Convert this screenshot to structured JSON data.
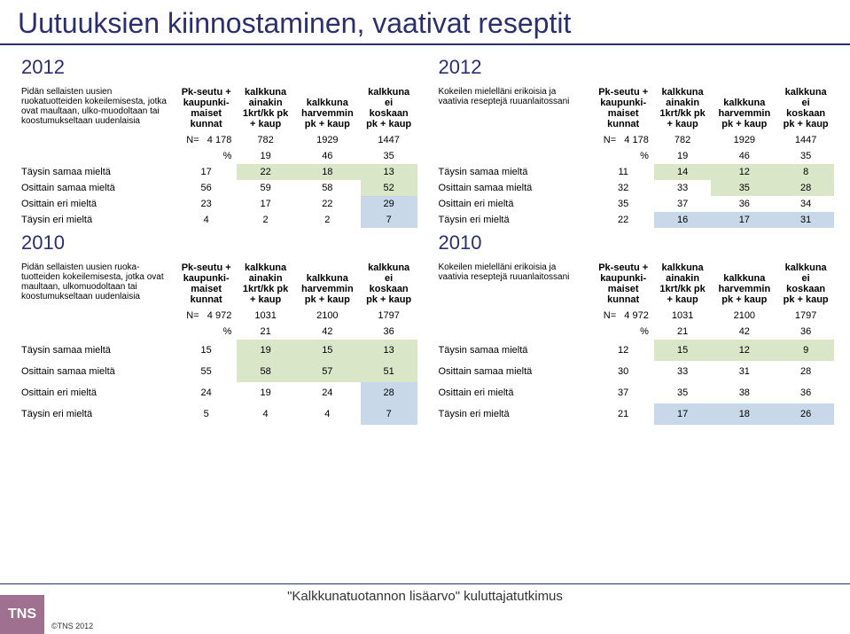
{
  "title": "Uutuuksien kiinnostaminen, vaativat reseptit",
  "years": {
    "y2012": "2012",
    "y2010": "2010"
  },
  "columns": {
    "c1": "Pk-seutu + kaupunki-maiset kunnat",
    "c2": "kalkkuna ainakin 1krt/kk pk + kaup",
    "c3": "kalkkuna harvemmin pk + kaup",
    "c4": "kalkkuna ei koskaan pk + kaup"
  },
  "row_labels": {
    "n": "N=",
    "pct": "%",
    "r1": "Täysin samaa mieltä",
    "r2": "Osittain samaa mieltä",
    "r3": "Osittain eri mieltä",
    "r4": "Täysin eri mieltä"
  },
  "tables": {
    "tl": {
      "desc": "Pidän sellaisten uusien ruokatuotteiden kokeilemisesta, jotka ovat maultaan, ulko-muodoltaan tai koostumukseltaan uudenlaisia",
      "n": [
        "4 178",
        "782",
        "1929",
        "1447"
      ],
      "pct": [
        "",
        "19",
        "46",
        "35"
      ],
      "rows": [
        [
          "17",
          "22",
          "18",
          "13"
        ],
        [
          "56",
          "59",
          "58",
          "52"
        ],
        [
          "23",
          "17",
          "22",
          "29"
        ],
        [
          "4",
          "2",
          "2",
          "7"
        ]
      ],
      "highlights": [
        {
          "r": 0,
          "cols": [
            1,
            2,
            3
          ],
          "bg": "#d9e6c8"
        },
        {
          "r": 1,
          "cols": [
            3
          ],
          "bg": "#d9e6c8"
        },
        {
          "r": 2,
          "cols": [
            3
          ],
          "bg": "#c8d8e8"
        },
        {
          "r": 3,
          "cols": [
            3
          ],
          "bg": "#c8d8e8"
        }
      ]
    },
    "tr": {
      "desc": "Kokeilen mielelläni erikoisia ja vaativia reseptejä ruuanlaitossani",
      "n": [
        "4 178",
        "782",
        "1929",
        "1447"
      ],
      "pct": [
        "",
        "19",
        "46",
        "35"
      ],
      "rows": [
        [
          "11",
          "14",
          "12",
          "8"
        ],
        [
          "32",
          "33",
          "35",
          "28"
        ],
        [
          "35",
          "37",
          "36",
          "34"
        ],
        [
          "22",
          "16",
          "17",
          "31"
        ]
      ],
      "highlights": [
        {
          "r": 0,
          "cols": [
            1,
            2,
            3
          ],
          "bg": "#d9e6c8"
        },
        {
          "r": 1,
          "cols": [
            2,
            3
          ],
          "bg": "#d9e6c8"
        },
        {
          "r": 3,
          "cols": [
            1,
            2,
            3
          ],
          "bg": "#c8d8e8"
        }
      ]
    },
    "bl": {
      "desc": "Pidän sellaisten uusien ruoka-tuotteiden kokeilemisesta, jotka ovat maultaan, ulkomuodoltaan tai koostumukseltaan uudenlaisia",
      "n": [
        "4 972",
        "1031",
        "2100",
        "1797"
      ],
      "pct": [
        "",
        "21",
        "42",
        "36"
      ],
      "rows": [
        [
          "15",
          "19",
          "15",
          "13"
        ],
        [
          "55",
          "58",
          "57",
          "51"
        ],
        [
          "24",
          "19",
          "24",
          "28"
        ],
        [
          "5",
          "4",
          "4",
          "7"
        ]
      ],
      "highlights": [
        {
          "r": 0,
          "cols": [
            1,
            2,
            3
          ],
          "bg": "#d9e6c8"
        },
        {
          "r": 1,
          "cols": [
            1,
            2,
            3
          ],
          "bg": "#d9e6c8"
        },
        {
          "r": 2,
          "cols": [
            3
          ],
          "bg": "#c8d8e8"
        },
        {
          "r": 3,
          "cols": [
            3
          ],
          "bg": "#c8d8e8"
        }
      ]
    },
    "br": {
      "desc": "Kokeilen mielelläni erikoisia ja vaativia reseptejä ruuanlaitossani",
      "n": [
        "4 972",
        "1031",
        "2100",
        "1797"
      ],
      "pct": [
        "",
        "21",
        "42",
        "36"
      ],
      "rows": [
        [
          "12",
          "15",
          "12",
          "9"
        ],
        [
          "30",
          "33",
          "31",
          "28"
        ],
        [
          "37",
          "35",
          "38",
          "36"
        ],
        [
          "21",
          "17",
          "18",
          "26"
        ]
      ],
      "highlights": [
        {
          "r": 0,
          "cols": [
            1,
            2,
            3
          ],
          "bg": "#d9e6c8"
        },
        {
          "r": 3,
          "cols": [
            1,
            2,
            3
          ],
          "bg": "#c8d8e8"
        }
      ]
    }
  },
  "footer": "\"Kalkkunatuotannon lisäarvo\" kuluttajatutkimus",
  "logo": "TNS",
  "copyright": "©TNS 2012",
  "style": {
    "title_color": "#2b2f6e",
    "hl_green": "#d9e6c8",
    "hl_blue": "#c8d8e8",
    "logo_bg": "#a07090"
  }
}
